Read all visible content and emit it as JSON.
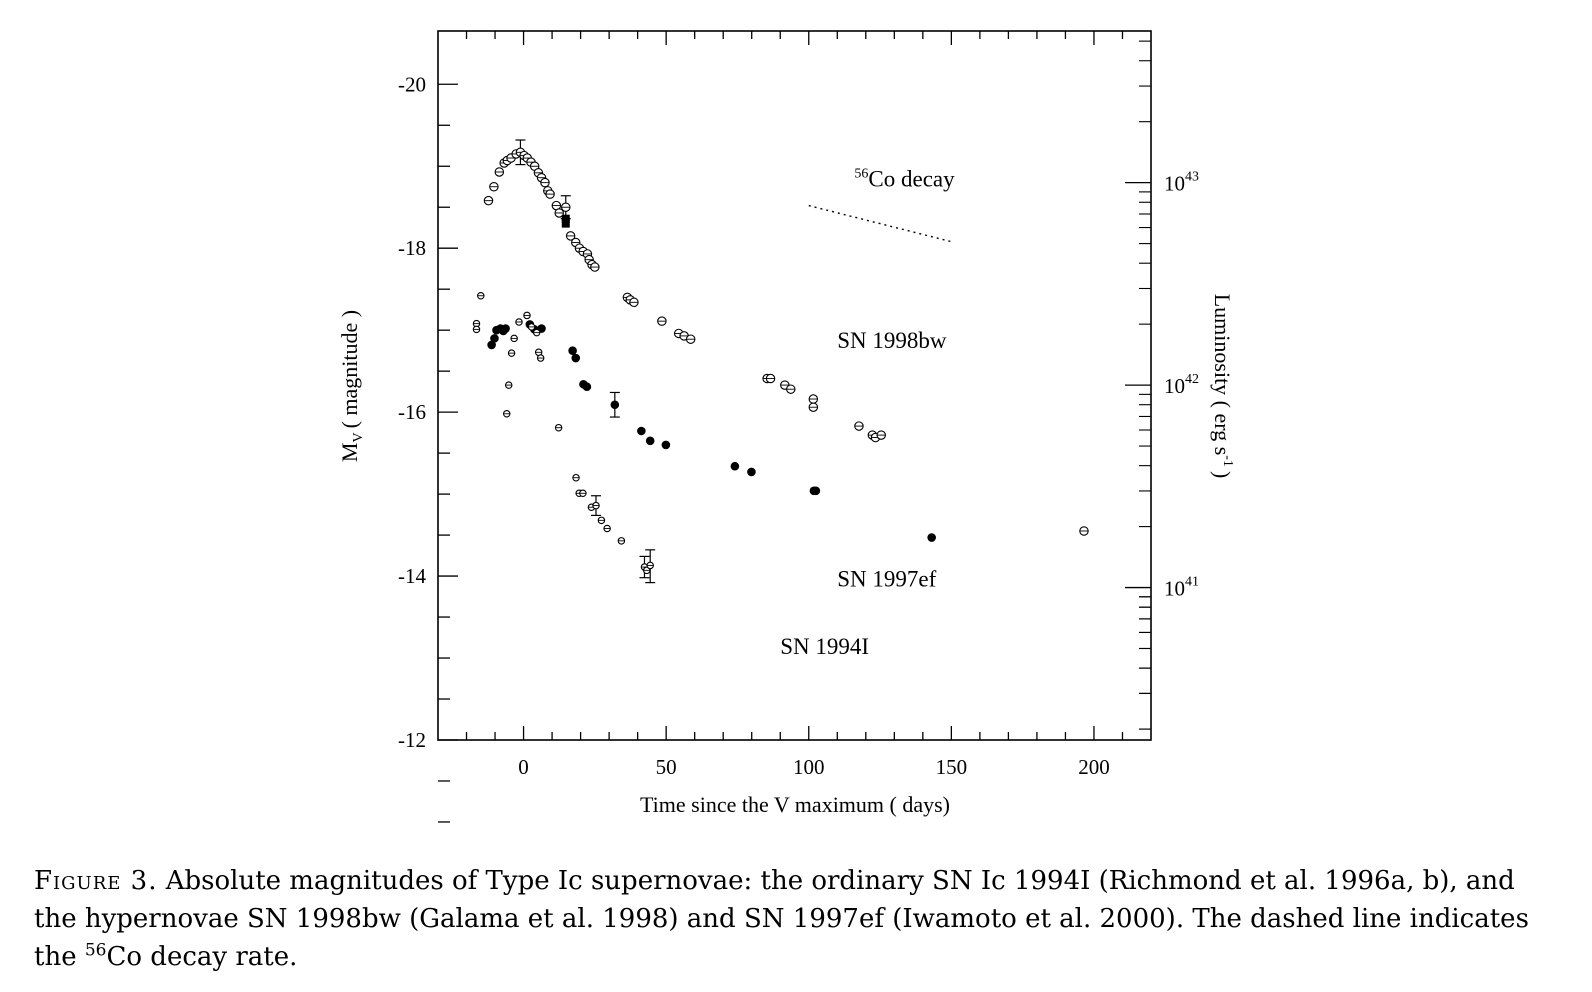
{
  "chart_data": {
    "type": "scatter",
    "x_axis": {
      "label": "Time since the V maximum ( days)",
      "range": [
        -30,
        220
      ],
      "ticks": [
        "0",
        "50",
        "100",
        "150",
        "200"
      ]
    },
    "y_axis_left": {
      "label_main": "M",
      "label_sub": "V",
      "label_rest": "( magnitude )",
      "range": [
        -20.65,
        -12
      ],
      "inverted": true,
      "ticks": [
        "-20",
        "-18",
        "-16",
        "-14",
        "-12"
      ]
    },
    "y_axis_right": {
      "label_main": "Luminosity ( erg s",
      "label_sup": "-1",
      "label_end": ")",
      "scale": "log",
      "ticks": [
        {
          "base": "10",
          "exp": "43",
          "mag": -18.8
        },
        {
          "base": "10",
          "exp": "42",
          "mag": -16.33
        },
        {
          "base": "10",
          "exp": "41",
          "mag": -13.86
        }
      ]
    },
    "grid": false,
    "annotations": [
      {
        "pre": "",
        "sup": "56",
        "text": "Co decay",
        "x": 116,
        "y": -18.75
      },
      {
        "pre": "",
        "sup": "",
        "text": "SN 1998bw",
        "x": 110,
        "y": -16.78
      },
      {
        "pre": "",
        "sup": "",
        "text": "SN 1997ef",
        "x": 110,
        "y": -13.87
      },
      {
        "pre": "",
        "sup": "",
        "text": "SN 1994I",
        "x": 90,
        "y": -13.05
      }
    ],
    "co_decay_line": {
      "x": [
        100,
        150
      ],
      "y": [
        -18.52,
        -18.08
      ]
    },
    "series": [
      {
        "name": "SN 1998bw",
        "marker": "open-circle",
        "points": [
          [
            -12.3,
            -18.58
          ],
          [
            -10.4,
            -18.75
          ],
          [
            -8.5,
            -18.93
          ],
          [
            -6.8,
            -19.04
          ],
          [
            -5.7,
            -19.07
          ],
          [
            -4.4,
            -19.1
          ],
          [
            -2.6,
            -19.15
          ],
          [
            -1.1,
            -19.17
          ],
          [
            0.2,
            -19.13
          ],
          [
            1.3,
            -19.1
          ],
          [
            2.6,
            -19.05
          ],
          [
            3.9,
            -19.0
          ],
          [
            5.2,
            -18.92
          ],
          [
            6.3,
            -18.86
          ],
          [
            7.5,
            -18.8
          ],
          [
            8.5,
            -18.7
          ],
          [
            9.3,
            -18.66
          ],
          [
            11.5,
            -18.52
          ],
          [
            12.5,
            -18.43
          ],
          [
            14.8,
            -18.5
          ],
          [
            16.5,
            -18.15
          ],
          [
            18.3,
            -18.07
          ],
          [
            19.6,
            -18.0
          ],
          [
            20.9,
            -17.96
          ],
          [
            22.4,
            -17.93
          ],
          [
            23.0,
            -17.86
          ],
          [
            24.0,
            -17.8
          ],
          [
            25.0,
            -17.77
          ],
          [
            36.4,
            -17.4
          ],
          [
            37.4,
            -17.37
          ],
          [
            38.7,
            -17.34
          ],
          [
            48.5,
            -17.11
          ],
          [
            54.4,
            -16.96
          ],
          [
            56.3,
            -16.93
          ],
          [
            58.6,
            -16.89
          ],
          [
            85.4,
            -16.41
          ],
          [
            86.6,
            -16.41
          ],
          [
            91.6,
            -16.33
          ],
          [
            93.7,
            -16.28
          ],
          [
            101.6,
            -16.16
          ],
          [
            101.6,
            -16.06
          ],
          [
            117.6,
            -15.83
          ],
          [
            122.3,
            -15.72
          ],
          [
            123.4,
            -15.69
          ],
          [
            125.4,
            -15.72
          ],
          [
            196.5,
            -14.55
          ]
        ]
      },
      {
        "name": "SN 1997ef",
        "marker": "filled-circle",
        "points": [
          [
            -11.2,
            -16.82
          ],
          [
            -10.2,
            -16.9
          ],
          [
            -9.5,
            -17.0
          ],
          [
            -8.1,
            -17.02
          ],
          [
            -7.1,
            -16.99
          ],
          [
            -6.3,
            -17.02
          ],
          [
            2.2,
            -17.07
          ],
          [
            3.8,
            -17.01
          ],
          [
            6.3,
            -17.02
          ],
          [
            17.2,
            -16.75
          ],
          [
            18.3,
            -16.66
          ],
          [
            21.0,
            -16.34
          ],
          [
            22.2,
            -16.31
          ],
          [
            32.0,
            -16.09
          ],
          [
            41.3,
            -15.77
          ],
          [
            44.4,
            -15.65
          ],
          [
            49.9,
            -15.6
          ],
          [
            74.1,
            -15.34
          ],
          [
            79.9,
            -15.27
          ],
          [
            101.8,
            -15.04
          ],
          [
            102.5,
            -15.04
          ],
          [
            143.1,
            -14.47
          ]
        ]
      },
      {
        "name": "SN 1994I",
        "marker": "open-circle-small",
        "points": [
          [
            -16.5,
            -17.08
          ],
          [
            -16.5,
            -17.01
          ],
          [
            -15.0,
            -17.42
          ],
          [
            -5.9,
            -15.98
          ],
          [
            -5.2,
            -16.33
          ],
          [
            -4.2,
            -16.72
          ],
          [
            -3.3,
            -16.9
          ],
          [
            -1.6,
            -17.1
          ],
          [
            1.2,
            -17.18
          ],
          [
            2.8,
            -17.04
          ],
          [
            4.6,
            -16.97
          ],
          [
            5.3,
            -16.73
          ],
          [
            6.0,
            -16.66
          ],
          [
            12.3,
            -15.81
          ],
          [
            18.4,
            -15.2
          ],
          [
            19.5,
            -15.01
          ],
          [
            20.8,
            -15.01
          ],
          [
            23.8,
            -14.84
          ],
          [
            25.4,
            -14.86
          ],
          [
            27.3,
            -14.68
          ],
          [
            29.3,
            -14.58
          ],
          [
            34.3,
            -14.43
          ],
          [
            42.4,
            -14.11
          ],
          [
            43.2,
            -14.07
          ],
          [
            44.4,
            -14.13
          ]
        ]
      }
    ],
    "error_bars": [
      {
        "x": -1.1,
        "lo": -19.32,
        "hi": -19.02
      },
      {
        "x": 14.8,
        "lo": -18.64,
        "hi": -18.36
      },
      {
        "x": 25.4,
        "lo": -14.98,
        "hi": -14.74
      },
      {
        "x": 32.0,
        "lo": -16.24,
        "hi": -15.94
      },
      {
        "x": 42.4,
        "lo": -14.24,
        "hi": -13.98
      },
      {
        "x": 44.4,
        "lo": -14.32,
        "hi": -13.92
      }
    ],
    "filled_square_points": [
      [
        14.8,
        -18.3
      ],
      [
        14.8,
        -18.36
      ]
    ]
  },
  "caption": {
    "figure_label": "Figure 3.",
    "text_1": " Absolute magnitudes of Type Ic supernovae: the ordinary SN Ic 1994I (Richmond et al. 1996a, b), and the hypernovae SN 1998bw (Galama et al. 1998) and SN 1997ef (Iwamoto et al. 2000). The dashed line indicates the ",
    "sup": "56",
    "text_2": "Co decay rate."
  }
}
